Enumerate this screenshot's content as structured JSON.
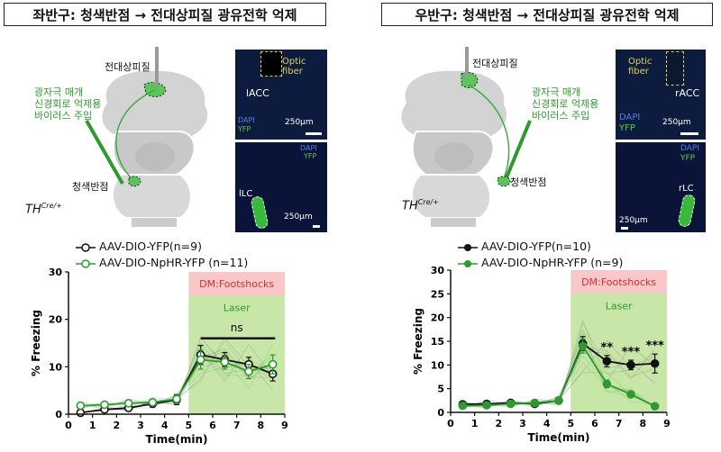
{
  "panels": {
    "left": {
      "title": "좌반구: 청색반점 → 전대상피질 광유전학 억제",
      "brain_labels": {
        "cortex": "전대상피질",
        "lc": "청색반점",
        "virus": [
          "광자극 매개",
          "신경회로 억제용",
          "바이러스 주입"
        ],
        "genotype": "TH",
        "genotype_sup": "Cre/+"
      },
      "micro_top": {
        "fiber": [
          "Optic",
          "fiber"
        ],
        "region": "lACC",
        "stain1": "DAPI",
        "stain2": "YFP",
        "scale": "250μm"
      },
      "micro_bottom": {
        "stain1": "DAPI",
        "stain2": "YFP",
        "region": "lLC",
        "scale": "250μm"
      },
      "legend": [
        "AAV-DIO-YFP(n=9)",
        "AAV-DIO-NpHR-YFP (n=11)"
      ]
    },
    "right": {
      "title": "우반구: 청색반점 → 전대상피질 광유전학 억제",
      "brain_labels": {
        "cortex": "전대상피질",
        "lc": "청색반점",
        "virus": [
          "광자극 매개",
          "신경회로 억제용",
          "바이러스 주입"
        ],
        "genotype": "TH",
        "genotype_sup": "Cre/+"
      },
      "micro_top": {
        "fiber": [
          "Optic",
          "fiber"
        ],
        "region": "rACC",
        "stain1": "DAPI",
        "stain2": "YFP",
        "scale": "250μm"
      },
      "micro_bottom": {
        "stain1": "DAPI",
        "stain2": "YFP",
        "region": "rLC",
        "scale": "250μm"
      },
      "legend": [
        "AAV-DIO-YFP(n=10)",
        "AAV-DIO-NpHR-YFP (n=9)"
      ]
    }
  },
  "colors": {
    "control": "#111111",
    "nphr": "#2e9a2e",
    "laser": "#c8e6a8",
    "shock": "#f8c8c8",
    "shock_text": "#d03030",
    "laser_text": "#2e9a2e"
  },
  "chart_data": [
    {
      "type": "line",
      "xlabel": "Time(min)",
      "ylabel": "% Freezing",
      "xlim": [
        0,
        9
      ],
      "ylim": [
        0,
        30
      ],
      "xticks": [
        0,
        1,
        2,
        3,
        4,
        5,
        6,
        7,
        8,
        9
      ],
      "yticks": [
        0,
        10,
        20,
        30
      ],
      "shock_label": "DM:Footshocks",
      "laser_label": "Laser",
      "shock_range": [
        5,
        9
      ],
      "annotation": "ns",
      "series": [
        {
          "name": "AAV-DIO-YFP(n=9)",
          "x": [
            0.5,
            1.5,
            2.5,
            3.5,
            4.5,
            5.5,
            6.5,
            7.5,
            8.5
          ],
          "values": [
            0.3,
            1.0,
            1.3,
            2.2,
            3.0,
            12.5,
            11.5,
            10.5,
            8.5
          ],
          "err": [
            0.4,
            0.5,
            0.6,
            0.7,
            1.0,
            2.0,
            1.5,
            1.5,
            1.5
          ]
        },
        {
          "name": "AAV-DIO-NpHR-YFP (n=11)",
          "x": [
            0.5,
            1.5,
            2.5,
            3.5,
            4.5,
            5.5,
            6.5,
            7.5,
            8.5
          ],
          "values": [
            1.8,
            2.0,
            2.3,
            2.5,
            3.2,
            11.5,
            11.0,
            9.0,
            10.5
          ],
          "err": [
            0.6,
            0.6,
            0.7,
            0.7,
            1.0,
            2.0,
            1.5,
            1.5,
            2.0
          ]
        }
      ]
    },
    {
      "type": "line",
      "xlabel": "Time(min)",
      "ylabel": "% Freezing",
      "xlim": [
        0,
        9
      ],
      "ylim": [
        0,
        30
      ],
      "xticks": [
        0,
        1,
        2,
        3,
        4,
        5,
        6,
        7,
        8,
        9
      ],
      "yticks": [
        0,
        5,
        10,
        15,
        20,
        25,
        30
      ],
      "shock_label": "DM:Footshocks",
      "laser_label": "Laser",
      "shock_range": [
        5,
        9
      ],
      "stars": [
        "**",
        "***",
        "***"
      ],
      "series": [
        {
          "name": "AAV-DIO-YFP(n=10)",
          "x": [
            0.5,
            1.5,
            2.5,
            3.5,
            4.5,
            5.5,
            6.5,
            7.5,
            8.5
          ],
          "values": [
            1.7,
            1.8,
            2.0,
            1.8,
            2.5,
            14.5,
            10.8,
            10.0,
            10.3
          ],
          "err": [
            0.4,
            0.4,
            0.5,
            0.4,
            0.6,
            1.5,
            1.2,
            1.0,
            2.0
          ]
        },
        {
          "name": "AAV-DIO-NpHR-YFP (n=9)",
          "x": [
            0.5,
            1.5,
            2.5,
            3.5,
            4.5,
            5.5,
            6.5,
            7.5,
            8.5
          ],
          "values": [
            1.4,
            1.5,
            1.8,
            2.0,
            2.5,
            14.0,
            6.0,
            3.8,
            1.3
          ],
          "err": [
            0.4,
            0.4,
            0.4,
            0.5,
            0.6,
            1.5,
            0.8,
            0.6,
            0.3
          ]
        }
      ]
    }
  ]
}
